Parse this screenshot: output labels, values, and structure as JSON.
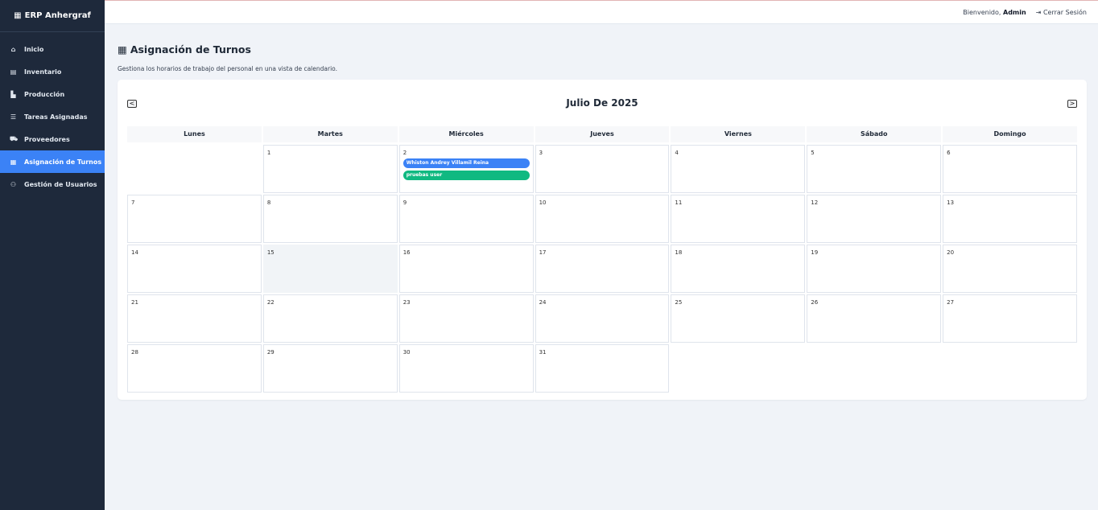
{
  "sidebar": {
    "brand": "ERP Anhergraf",
    "brand_icon": "sitemap-icon",
    "items": [
      {
        "label": "Inicio",
        "icon": "home-icon",
        "active": false
      },
      {
        "label": "Inventario",
        "icon": "box-icon",
        "active": false
      },
      {
        "label": "Producción",
        "icon": "industry-icon",
        "active": false
      },
      {
        "label": "Tareas Asignadas",
        "icon": "tasks-icon",
        "active": false
      },
      {
        "label": "Proveedores",
        "icon": "truck-icon",
        "active": false
      },
      {
        "label": "Asignación de Turnos",
        "icon": "calendar-icon",
        "active": true
      },
      {
        "label": "Gestión de Usuarios",
        "icon": "users-icon",
        "active": false
      }
    ]
  },
  "header": {
    "welcome": "Bienvenido,",
    "user": "Admin",
    "logout": "Cerrar Sesión"
  },
  "page": {
    "title": "Asignación de Turnos",
    "subtitle": "Gestiona los horarios de trabajo del personal en una vista de calendario."
  },
  "calendar": {
    "month": "Julio De 2025",
    "prev": "<",
    "next": ">",
    "weekdays": [
      "Lunes",
      "Martes",
      "Miércoles",
      "Jueves",
      "Viernes",
      "Sábado",
      "Domingo"
    ],
    "today": 15,
    "weeks": [
      [
        null,
        1,
        2,
        3,
        4,
        5,
        6
      ],
      [
        7,
        8,
        9,
        10,
        11,
        12,
        13
      ],
      [
        14,
        15,
        16,
        17,
        18,
        19,
        20
      ],
      [
        21,
        22,
        23,
        24,
        25,
        26,
        27
      ],
      [
        28,
        29,
        30,
        31,
        null,
        null,
        null
      ]
    ],
    "events": [
      {
        "day": 2,
        "label": "Whiston Andrey Villamil Reina",
        "color": "#3b82f6"
      },
      {
        "day": 2,
        "label": "pruebas user",
        "color": "#10b981"
      }
    ]
  },
  "colors": {
    "sidebar": "#1e293b",
    "active": "#3b82f6"
  }
}
